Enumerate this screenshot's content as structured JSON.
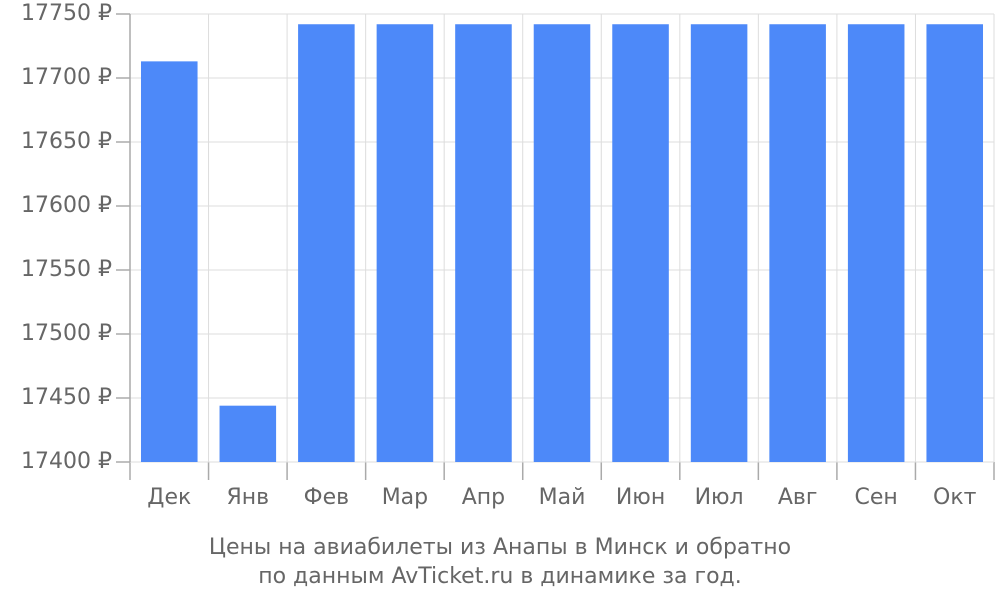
{
  "chart_data": {
    "type": "bar",
    "title": "Цены на авиабилеты из Анапы в Минск и обратно",
    "subtitle": "по данным AvTicket.ru в динамике за год.",
    "categories": [
      "Дек",
      "Янв",
      "Фев",
      "Мар",
      "Апр",
      "Май",
      "Июн",
      "Июл",
      "Авг",
      "Сен",
      "Окт"
    ],
    "values": [
      17713,
      17444,
      17742,
      17742,
      17742,
      17742,
      17742,
      17742,
      17742,
      17742,
      17742
    ],
    "color": "#4d89f9",
    "ylim": [
      17400,
      17750
    ],
    "yticks": [
      {
        "value": 17400,
        "label": "17400 ₽"
      },
      {
        "value": 17450,
        "label": "17450 ₽"
      },
      {
        "value": 17500,
        "label": "17500 ₽"
      },
      {
        "value": 17550,
        "label": "17550 ₽"
      },
      {
        "value": 17600,
        "label": "17600 ₽"
      },
      {
        "value": 17650,
        "label": "17650 ₽"
      },
      {
        "value": 17700,
        "label": "17700 ₽"
      },
      {
        "value": 17750,
        "label": "17750 ₽"
      }
    ],
    "grid": true
  }
}
